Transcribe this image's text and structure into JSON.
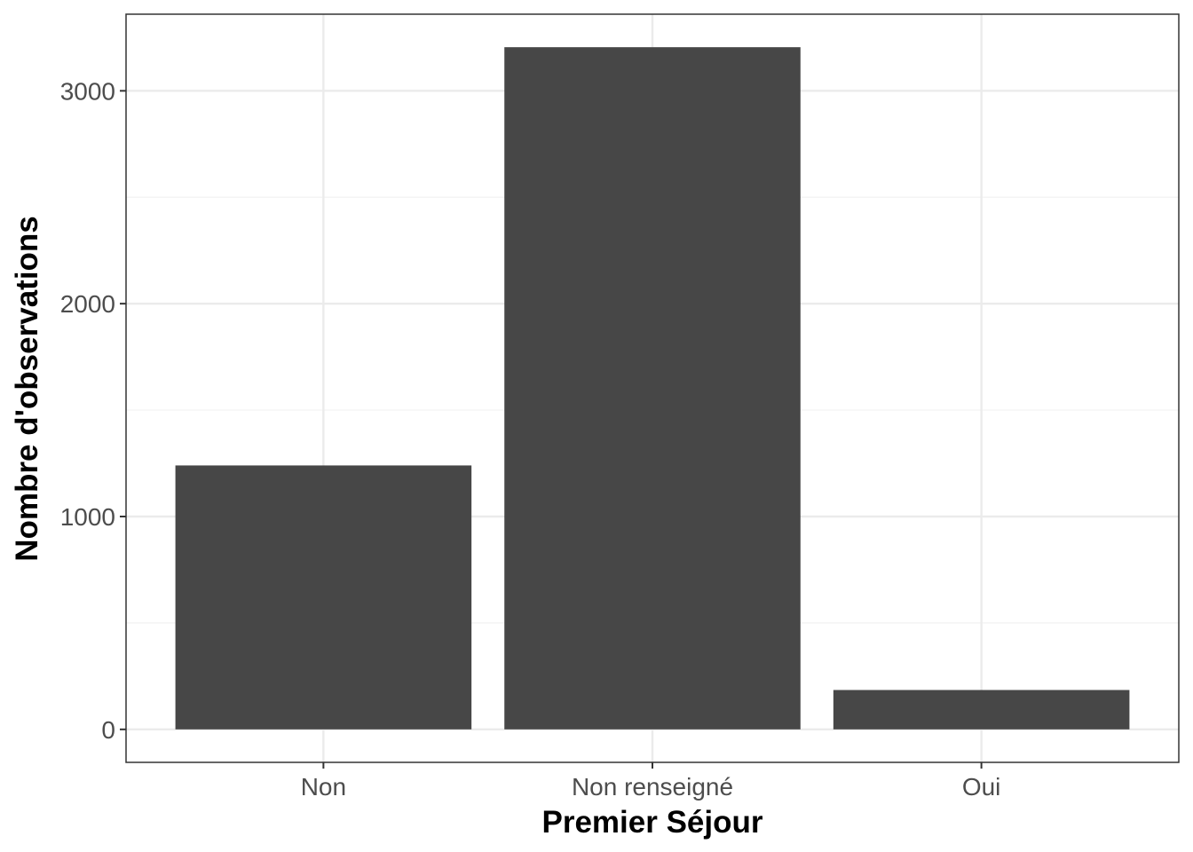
{
  "chart_data": {
    "type": "bar",
    "title": "",
    "xlabel": "Premier Séjour",
    "ylabel": "Nombre d'observations",
    "categories": [
      "Non",
      "Non renseigné",
      "Oui"
    ],
    "values": [
      1240,
      3205,
      185
    ],
    "ylim": [
      -155,
      3360
    ],
    "yticks": [
      0,
      1000,
      2000,
      3000
    ],
    "ytick_labels": [
      "0",
      "1000",
      "2000",
      "3000"
    ],
    "grid": true,
    "colors": {
      "bar": "#474747",
      "grid_major": "#ebebeb",
      "grid_minor": "#f2f2f2",
      "panel_border": "#333333",
      "tick_label": "#4d4d4d"
    }
  }
}
